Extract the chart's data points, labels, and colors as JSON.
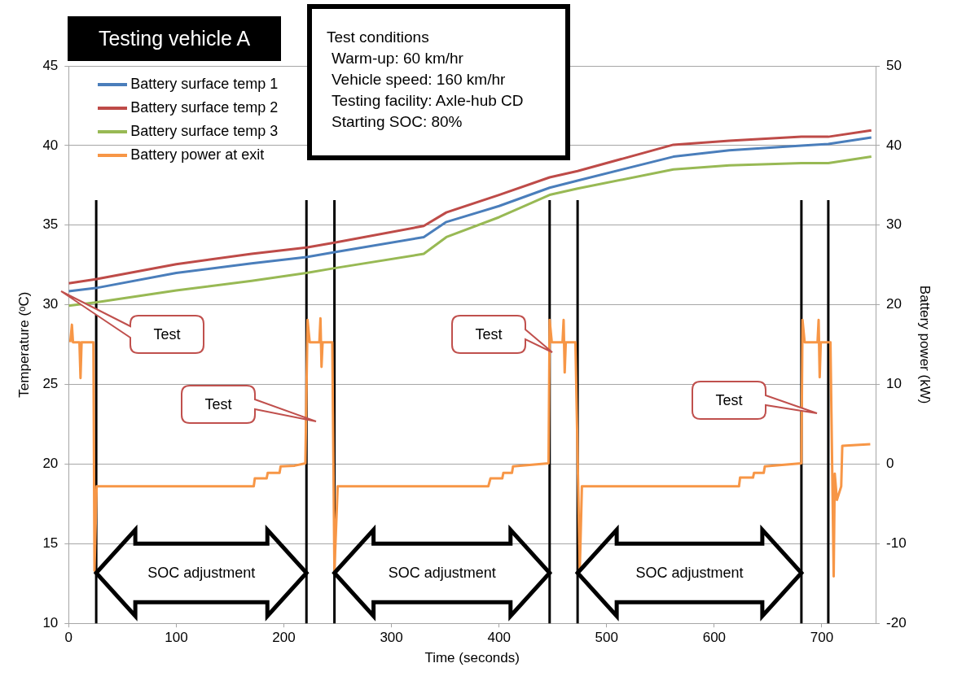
{
  "chart_data": {
    "type": "line",
    "title": "Testing vehicle A",
    "xlabel": "Time (seconds)",
    "ylabel": "Temperature (ᵒC)",
    "y2label": "Battery power (kW)",
    "xlim": [
      0,
      750
    ],
    "xticks": [
      0,
      100,
      200,
      300,
      400,
      500,
      600,
      700
    ],
    "ylim": [
      10,
      45
    ],
    "yticks": [
      10,
      15,
      20,
      25,
      30,
      35,
      40,
      45
    ],
    "y2lim": [
      -20,
      50
    ],
    "y2ticks": [
      -20,
      -10,
      0,
      10,
      20,
      30,
      40,
      50
    ],
    "grid": "y",
    "legend": "top left",
    "marker": "none",
    "line_style": "solid",
    "series": [
      {
        "name": "Battery surface temp 1",
        "color": "#4a7ebb",
        "x": [
          0,
          25,
          100,
          170,
          221,
          247,
          330,
          351,
          400,
          447,
          473,
          562,
          614,
          681,
          706,
          746
        ],
        "values": [
          30.85,
          31.05,
          32.0,
          32.6,
          33.0,
          33.3,
          34.25,
          35.2,
          36.2,
          37.35,
          37.8,
          39.3,
          39.7,
          40.0,
          40.1,
          40.5
        ]
      },
      {
        "name": "Battery surface temp 2",
        "color": "#be4b48",
        "x": [
          0,
          25,
          100,
          170,
          221,
          247,
          330,
          351,
          400,
          447,
          473,
          562,
          614,
          681,
          706,
          746
        ],
        "values": [
          31.35,
          31.6,
          32.55,
          33.2,
          33.6,
          33.9,
          34.95,
          35.8,
          36.9,
          38.0,
          38.4,
          40.05,
          40.3,
          40.55,
          40.55,
          40.95
        ]
      },
      {
        "name": "Battery surface temp 3",
        "color": "#98b954",
        "x": [
          0,
          25,
          100,
          170,
          221,
          247,
          330,
          351,
          400,
          447,
          473,
          562,
          614,
          681,
          706,
          746
        ],
        "values": [
          29.95,
          30.15,
          30.9,
          31.5,
          32.0,
          32.3,
          33.2,
          34.25,
          35.5,
          36.9,
          37.3,
          38.5,
          38.75,
          38.9,
          38.9,
          39.3
        ]
      },
      {
        "name": "Battery power at exit",
        "color": "#f79646",
        "axis": "y2",
        "x": [
          1.5,
          2,
          3,
          4,
          10,
          11,
          12,
          23,
          24,
          26,
          172,
          173,
          184,
          185,
          196,
          197,
          210,
          220,
          222,
          224,
          233,
          234,
          235,
          236,
          245,
          247,
          250,
          390,
          392,
          403,
          404,
          412,
          413,
          446,
          447,
          449,
          459,
          460,
          461,
          462,
          471,
          475,
          477,
          623,
          624,
          636,
          637,
          646,
          647,
          681,
          682,
          684,
          696,
          697,
          698,
          699,
          708,
          711,
          712,
          714,
          718,
          719,
          745
        ],
        "values": [
          15.3,
          15.3,
          17.5,
          15.3,
          15.3,
          10.8,
          15.3,
          15.3,
          -13.4,
          -2.8,
          -2.8,
          -1.8,
          -1.8,
          -1.1,
          -1.1,
          -0.3,
          -0.2,
          0.1,
          18.1,
          15.3,
          15.3,
          18.3,
          12.2,
          15.3,
          15.3,
          -13.4,
          -2.8,
          -2.8,
          -1.8,
          -1.8,
          -1.1,
          -1.1,
          -0.3,
          0.1,
          18.1,
          15.3,
          15.3,
          18.1,
          11.5,
          15.3,
          15.3,
          -13.4,
          -2.8,
          -2.8,
          -1.7,
          -1.7,
          -1.1,
          -1.1,
          -0.3,
          0.1,
          18.1,
          15.3,
          15.3,
          18.1,
          10.9,
          15.3,
          15.3,
          -14.1,
          -1.2,
          -4.5,
          -2.8,
          2.3,
          2.5
        ]
      }
    ],
    "ref_lines": [
      {
        "axis": "x",
        "value": 25.6,
        "color": "#000000"
      },
      {
        "axis": "x",
        "value": 221,
        "color": "#000000"
      },
      {
        "axis": "x",
        "value": 247,
        "color": "#000000"
      },
      {
        "axis": "x",
        "value": 447,
        "color": "#000000"
      },
      {
        "axis": "x",
        "value": 473,
        "color": "#000000"
      },
      {
        "axis": "x",
        "value": 681,
        "color": "#000000"
      },
      {
        "axis": "x",
        "value": 706,
        "color": "#000000"
      }
    ],
    "annotations": [
      "Test conditions\nWarm-up: 60 km/hr\nVehicle speed: 160 km/hr\nTesting facility: Axle-hub CD\nStarting SOC: 80%",
      "Test",
      "Test",
      "Test",
      "Test",
      "SOC adjustment",
      "SOC adjustment",
      "SOC adjustment"
    ]
  }
}
